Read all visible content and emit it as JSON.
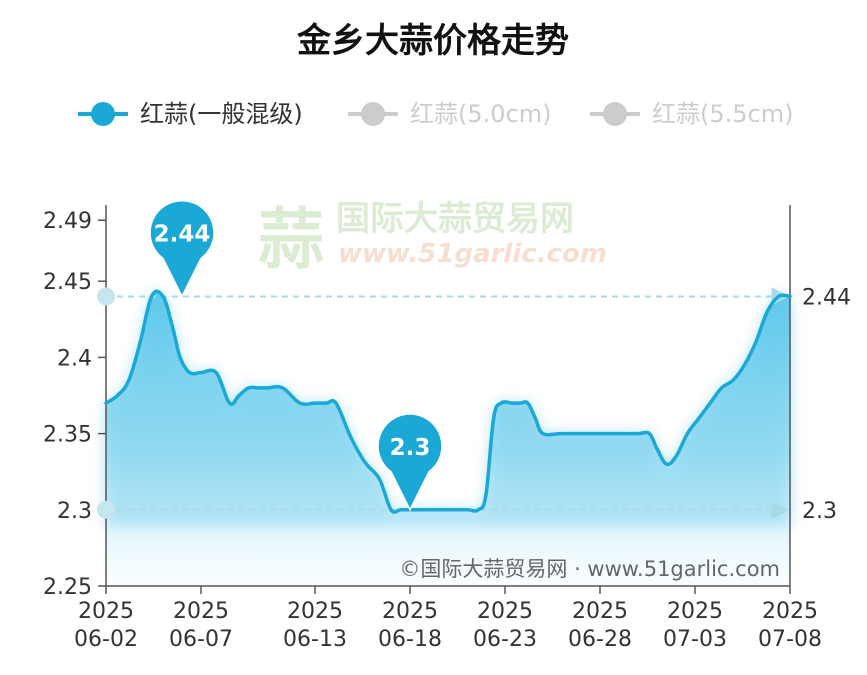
{
  "chart_data": {
    "type": "area",
    "title": "金乡大蒜价格走势",
    "xlabel": "",
    "ylabel": "",
    "ylim": [
      2.25,
      2.5
    ],
    "y_ticks": [
      2.25,
      2.3,
      2.35,
      2.4,
      2.45,
      2.49
    ],
    "x_ticks": [
      {
        "year": "2025",
        "date": "06-02",
        "day": 0
      },
      {
        "year": "2025",
        "date": "06-07",
        "day": 5
      },
      {
        "year": "2025",
        "date": "06-13",
        "day": 11
      },
      {
        "year": "2025",
        "date": "06-18",
        "day": 16
      },
      {
        "year": "2025",
        "date": "06-23",
        "day": 21
      },
      {
        "year": "2025",
        "date": "06-28",
        "day": 26
      },
      {
        "year": "2025",
        "date": "07-03",
        "day": 31
      },
      {
        "year": "2025",
        "date": "07-08",
        "day": 36
      }
    ],
    "legend_position": "top",
    "grid": false,
    "series": [
      {
        "name": "红蒜(一般混级)",
        "active": true,
        "color": "#1aa9d6",
        "x": [
          0,
          0.6,
          1.2,
          1.8,
          2.4,
          3.0,
          3.5,
          3.9,
          4.4,
          5.0,
          5.8,
          6.5,
          7.0,
          7.5,
          8.0,
          8.5,
          9.3,
          10.2,
          11.0,
          11.6,
          12.1,
          12.8,
          13.2,
          13.7,
          14.4,
          15.0,
          15.5,
          16.0,
          17.0,
          18.0,
          19.0,
          19.6,
          20.0,
          20.4,
          20.8,
          21.4,
          21.8,
          22.2,
          22.6,
          23.0,
          24.0,
          25.5,
          27.0,
          28.0,
          28.6,
          29.0,
          29.5,
          30.0,
          30.6,
          31.2,
          31.8,
          32.4,
          33.0,
          33.6,
          34.2,
          34.8,
          35.4,
          36.0
        ],
        "y": [
          2.37,
          2.375,
          2.385,
          2.41,
          2.44,
          2.44,
          2.42,
          2.4,
          2.39,
          2.39,
          2.39,
          2.37,
          2.375,
          2.38,
          2.38,
          2.38,
          2.38,
          2.37,
          2.37,
          2.37,
          2.37,
          2.35,
          2.34,
          2.33,
          2.32,
          2.3,
          2.3,
          2.3,
          2.3,
          2.3,
          2.3,
          2.3,
          2.31,
          2.36,
          2.37,
          2.37,
          2.37,
          2.37,
          2.36,
          2.35,
          2.35,
          2.35,
          2.35,
          2.35,
          2.35,
          2.34,
          2.33,
          2.335,
          2.35,
          2.36,
          2.37,
          2.38,
          2.385,
          2.395,
          2.41,
          2.43,
          2.44,
          2.44
        ]
      },
      {
        "name": "红蒜(5.0cm)",
        "active": false,
        "color": "#cccccc",
        "x": [],
        "y": []
      },
      {
        "name": "红蒜(5.5cm)",
        "active": false,
        "color": "#cccccc",
        "x": [],
        "y": []
      }
    ],
    "markers": {
      "max": {
        "value": "2.44",
        "x": 4.0,
        "y": 2.44
      },
      "min": {
        "value": "2.3",
        "x": 16.0,
        "y": 2.3
      }
    },
    "reference_lines": [
      {
        "y": 2.44,
        "label": "2.44"
      },
      {
        "y": 2.3,
        "label": "2.3"
      }
    ]
  },
  "watermark": {
    "logo_glyph": "蒜",
    "main": "国际大蒜贸易网",
    "sub": "www.51garlic.com"
  },
  "source": "©国际大蒜贸易网 · www.51garlic.com",
  "colors": {
    "line": "#1aa9d6",
    "area": "#7fd3ef",
    "inactive": "#cccccc",
    "refline": "#a8dbe9"
  }
}
